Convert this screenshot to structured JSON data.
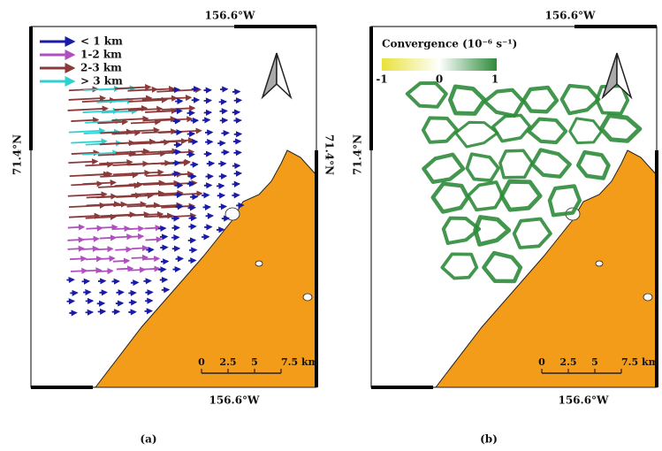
{
  "panels": [
    {
      "caption": "(a)",
      "top_label": "156.6°W",
      "bottom_label": "156.6°W",
      "left_label": "71.4°N",
      "right_label": "71.4°N",
      "legend": [
        "< 1 km",
        "1-2 km",
        "2-3 km",
        "> 3 km"
      ],
      "scale_labels": [
        "0",
        "2.5",
        "5",
        "7.5 km"
      ]
    },
    {
      "caption": "(b)",
      "top_label": "156.6°W",
      "bottom_label": "156.6°W",
      "left_label": "71.4°N",
      "colorbar_title": "Convergence (10⁻⁶ s⁻¹)",
      "colorbar_ticks": [
        "-1",
        "0",
        "1"
      ],
      "scale_labels": [
        "0",
        "2.5",
        "5",
        "7.5 km"
      ]
    }
  ]
}
